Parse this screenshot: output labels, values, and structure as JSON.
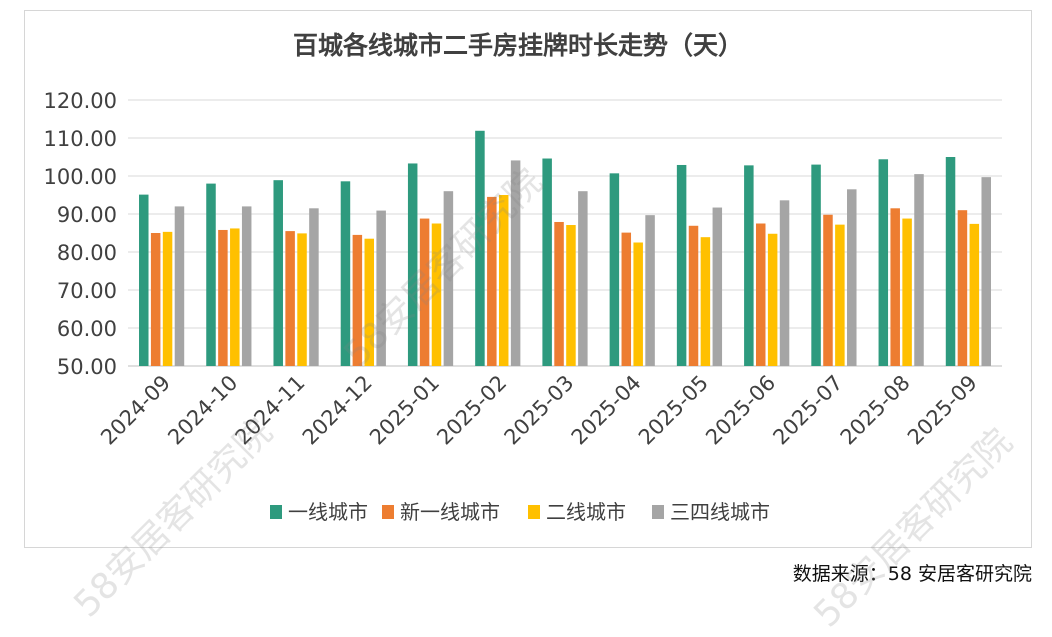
{
  "chart_data": {
    "type": "bar",
    "title": "百城各线城市二手房挂牌时长走势（天）",
    "categories": [
      "2024-09",
      "2024-10",
      "2024-11",
      "2024-12",
      "2025-01",
      "2025-02",
      "2025-03",
      "2025-04",
      "2025-05",
      "2025-06",
      "2025-07",
      "2025-08",
      "2025-09"
    ],
    "series": [
      {
        "name": "一线城市",
        "color": "#2e9a7e",
        "values": [
          95.1,
          98.0,
          98.9,
          98.6,
          103.3,
          111.9,
          104.6,
          100.7,
          102.9,
          102.8,
          103.0,
          104.4,
          105.0
        ]
      },
      {
        "name": "新一线城市",
        "color": "#ed7d31",
        "values": [
          85.0,
          85.8,
          85.5,
          84.5,
          88.8,
          94.5,
          87.9,
          85.1,
          86.9,
          87.5,
          89.8,
          91.5,
          91.0
        ]
      },
      {
        "name": "二线城市",
        "color": "#ffc000",
        "values": [
          85.3,
          86.2,
          84.9,
          83.5,
          87.5,
          95.0,
          87.1,
          82.5,
          83.9,
          84.8,
          87.2,
          88.8,
          87.4
        ]
      },
      {
        "name": "三四线城市",
        "color": "#a5a5a5",
        "values": [
          92.0,
          92.0,
          91.5,
          90.9,
          96.0,
          104.1,
          96.0,
          89.7,
          91.7,
          93.6,
          96.5,
          100.5,
          99.7
        ]
      }
    ],
    "yticks": [
      "120.00",
      "110.00",
      "100.00",
      "90.00",
      "80.00",
      "70.00",
      "60.00",
      "50.00"
    ],
    "ylim": [
      50,
      120
    ],
    "grid": true,
    "legend": "bottom"
  },
  "source_note": "数据来源：58 安居客研究院",
  "watermark": "58安居客研究院"
}
